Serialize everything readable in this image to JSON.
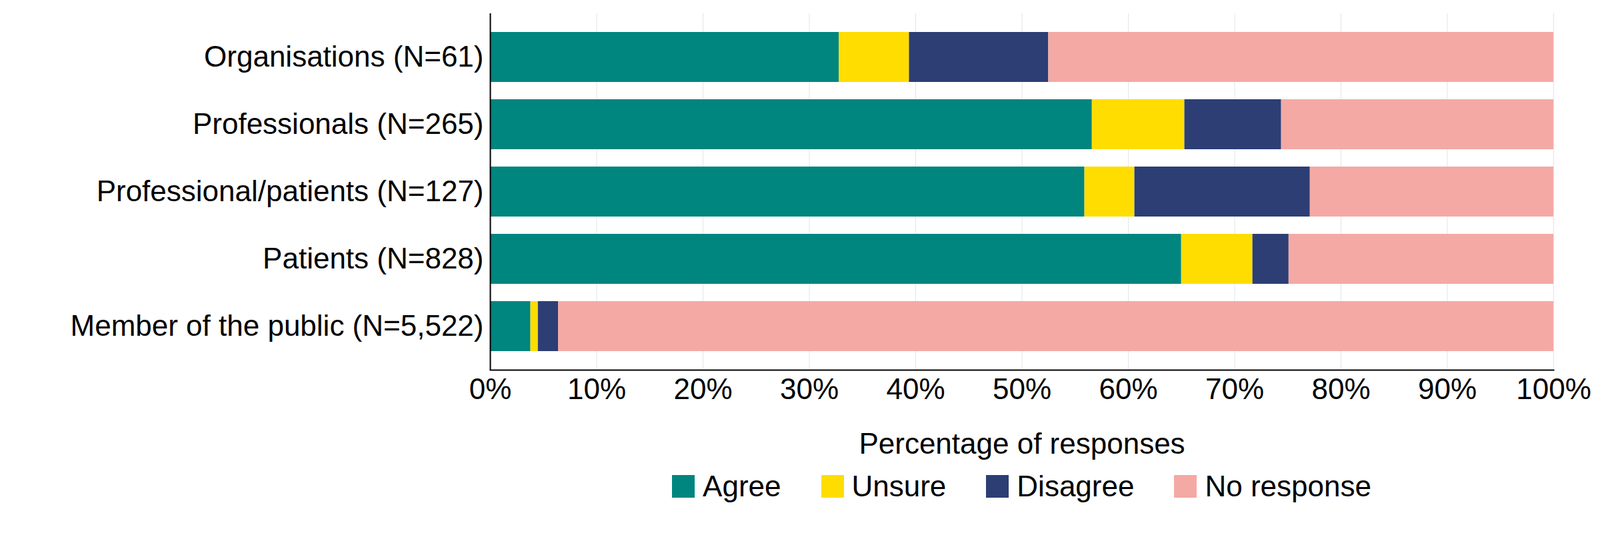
{
  "chart_data": {
    "type": "bar",
    "orientation": "horizontal",
    "stacked": true,
    "grid": true,
    "legend": "bottom",
    "xlabel": "Percentage of responses",
    "categories": [
      "Organisations (N=61)",
      "Professionals (N=265)",
      "Professional/patients (N=127)",
      "Patients (N=828)",
      "Member of the public (N=5,522)"
    ],
    "series": [
      {
        "name": "Agree",
        "color": "#00857f",
        "values": [
          32.8,
          56.6,
          55.9,
          65.0,
          3.8
        ]
      },
      {
        "name": "Unsure",
        "color": "#ffdd00",
        "values": [
          6.6,
          8.7,
          4.7,
          6.7,
          0.7
        ]
      },
      {
        "name": "Disagree",
        "color": "#2c3e74",
        "values": [
          13.1,
          9.1,
          16.5,
          3.4,
          1.9
        ]
      },
      {
        "name": "No response",
        "color": "#f4a9a5",
        "values": [
          47.5,
          25.6,
          22.9,
          24.9,
          93.6
        ]
      }
    ],
    "xlim": [
      0,
      100
    ],
    "xticks": [
      {
        "value": 0,
        "label": "0%"
      },
      {
        "value": 10,
        "label": "10%"
      },
      {
        "value": 20,
        "label": "20%"
      },
      {
        "value": 30,
        "label": "30%"
      },
      {
        "value": 40,
        "label": "40%"
      },
      {
        "value": 50,
        "label": "50%"
      },
      {
        "value": 60,
        "label": "60%"
      },
      {
        "value": 70,
        "label": "70%"
      },
      {
        "value": 80,
        "label": "80%"
      },
      {
        "value": 90,
        "label": "90%"
      },
      {
        "value": 100,
        "label": "100%"
      }
    ]
  }
}
